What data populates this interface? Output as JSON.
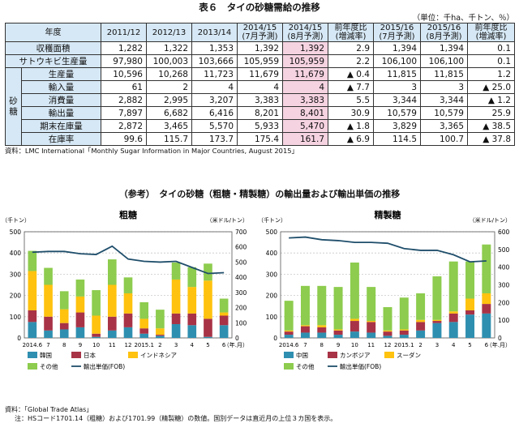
{
  "table": {
    "title": "表６　タイの砂糖需給の推移",
    "unit": "（単位：千ha、千トン、％）",
    "headers": [
      "年度",
      "2011/12",
      "2012/13",
      "2013/14",
      "2014/15\n(7月予測)",
      "2014/15\n(8月予測)",
      "前年度比\n(増減率)",
      "2015/16\n(7月予測)",
      "2015/16\n(8月予測)",
      "前年度比\n(増減率)"
    ],
    "group_label": "砂糖",
    "rows": [
      {
        "label": "収穫面積",
        "cells": [
          "1,282",
          "1,322",
          "1,353",
          "1,392",
          "1,392",
          "2.9",
          "1,394",
          "1,394",
          "0.1"
        ]
      },
      {
        "label": "サトウキビ生産量",
        "cells": [
          "97,980",
          "100,003",
          "103,666",
          "105,959",
          "105,959",
          "2.2",
          "106,100",
          "106,100",
          "0.1"
        ]
      },
      {
        "label": "生産量",
        "cells": [
          "10,596",
          "10,268",
          "11,723",
          "11,679",
          "11,679",
          "▲ 0.4",
          "11,815",
          "11,815",
          "1.2"
        ]
      },
      {
        "label": "輸入量",
        "cells": [
          "61",
          "2",
          "4",
          "4",
          "4",
          "▲ 7.7",
          "3",
          "3",
          "▲ 25.0"
        ]
      },
      {
        "label": "消費量",
        "cells": [
          "2,882",
          "2,995",
          "3,207",
          "3,383",
          "3,383",
          "5.5",
          "3,344",
          "3,344",
          "▲ 1.2"
        ]
      },
      {
        "label": "輸出量",
        "cells": [
          "7,897",
          "6,682",
          "6,416",
          "8,201",
          "8,401",
          "30.9",
          "10,579",
          "10,579",
          "25.9"
        ]
      },
      {
        "label": "期末在庫量",
        "cells": [
          "2,872",
          "3,465",
          "5,570",
          "5,933",
          "5,470",
          "▲ 1.8",
          "3,829",
          "3,365",
          "▲ 38.5"
        ]
      },
      {
        "label": "在庫率",
        "cells": [
          "99.6",
          "115.7",
          "173.7",
          "175.4",
          "161.7",
          "▲ 6.9",
          "114.5",
          "100.7",
          "▲ 37.8"
        ]
      }
    ],
    "source": "資料：LMC International「Monthly Sugar Information in Major Countries, August 2015」"
  },
  "section_title": "（参考）　タイの砂糖（粗糖・精製糖）の輸出量および輸出単価の推移",
  "footnote_source": "資料：「Global Trade Atlas」",
  "footnote_note": "注：HSコード1701.14（粗糖）および1701.99（精製糖）の数値。国別データは直近月の上位３カ国を表示。",
  "colors": {
    "header_bg": "#d6e8f5",
    "highlight": "#f6d3e1",
    "line": "#1f4e6b"
  },
  "chart_data": [
    {
      "type": "bar",
      "stacked": true,
      "title": "粗糖",
      "y_unit_left": "（千トン）",
      "y_unit_right": "（米ドル/トン）",
      "x_unit": "（年.月）",
      "categories": [
        "2014.6",
        "7",
        "8",
        "9",
        "10",
        "11",
        "12",
        "2015.1",
        "2",
        "3",
        "4",
        "5",
        "6"
      ],
      "ylim_left": [
        0,
        500
      ],
      "ylim_right": [
        0,
        700
      ],
      "yticks_left": [
        0,
        100,
        200,
        300,
        400,
        500
      ],
      "yticks_right": [
        0,
        100,
        200,
        300,
        400,
        500,
        600,
        700
      ],
      "series": [
        {
          "name": "韓国",
          "color": "#2f8fb0",
          "values": [
            75,
            35,
            40,
            50,
            5,
            35,
            50,
            20,
            10,
            65,
            60,
            5,
            60
          ]
        },
        {
          "name": "日本",
          "color": "#a83346",
          "values": [
            55,
            65,
            30,
            70,
            15,
            65,
            65,
            25,
            5,
            50,
            55,
            85,
            45
          ]
        },
        {
          "name": "インドネシア",
          "color": "#ffc20e",
          "values": [
            185,
            150,
            65,
            75,
            85,
            150,
            95,
            45,
            30,
            160,
            125,
            180,
            15
          ]
        },
        {
          "name": "その他",
          "color": "#8dcc4e",
          "values": [
            95,
            80,
            85,
            80,
            120,
            120,
            75,
            78,
            88,
            80,
            93,
            80,
            65
          ]
        }
      ],
      "line": {
        "name": "輸出単価(FOB)",
        "color": "#1f4e6b",
        "values": [
          565,
          570,
          570,
          555,
          550,
          605,
          520,
          505,
          500,
          505,
          465,
          425,
          430
        ]
      },
      "legend": [
        "韓国",
        "日本",
        "インドネシア",
        "その他",
        "輸出単価(FOB)"
      ]
    },
    {
      "type": "bar",
      "stacked": true,
      "title": "精製糖",
      "y_unit_left": "（千トン）",
      "y_unit_right": "（米ドル/トン）",
      "x_unit": "（年.月）",
      "categories": [
        "2014.6",
        "7",
        "8",
        "9",
        "10",
        "11",
        "12",
        "2015.1",
        "2",
        "3",
        "4",
        "5",
        "6"
      ],
      "ylim_left": [
        0,
        500
      ],
      "ylim_right": [
        0,
        600
      ],
      "yticks_left": [
        0,
        100,
        200,
        300,
        400,
        500
      ],
      "yticks_right": [
        0,
        100,
        200,
        300,
        400,
        500,
        600
      ],
      "series": [
        {
          "name": "中国",
          "color": "#2f8fb0",
          "values": [
            15,
            25,
            25,
            15,
            30,
            25,
            10,
            15,
            35,
            70,
            75,
            110,
            115
          ]
        },
        {
          "name": "カンボジア",
          "color": "#a83346",
          "values": [
            15,
            30,
            25,
            20,
            50,
            50,
            20,
            20,
            40,
            10,
            40,
            20,
            45
          ]
        },
        {
          "name": "スーダン",
          "color": "#ffc20e",
          "values": [
            5,
            5,
            10,
            5,
            10,
            5,
            5,
            5,
            10,
            5,
            10,
            55,
            50
          ]
        },
        {
          "name": "その他",
          "color": "#8dcc4e",
          "values": [
            140,
            185,
            185,
            200,
            265,
            160,
            110,
            150,
            125,
            205,
            235,
            175,
            230
          ]
        }
      ],
      "line": {
        "name": "輸出単価(FOB)",
        "color": "#1f4e6b",
        "values": [
          565,
          570,
          555,
          550,
          540,
          540,
          535,
          505,
          495,
          495,
          470,
          430,
          435
        ]
      },
      "legend": [
        "中国",
        "カンボジア",
        "スーダン",
        "その他",
        "輸出単価(FOB)"
      ]
    }
  ]
}
